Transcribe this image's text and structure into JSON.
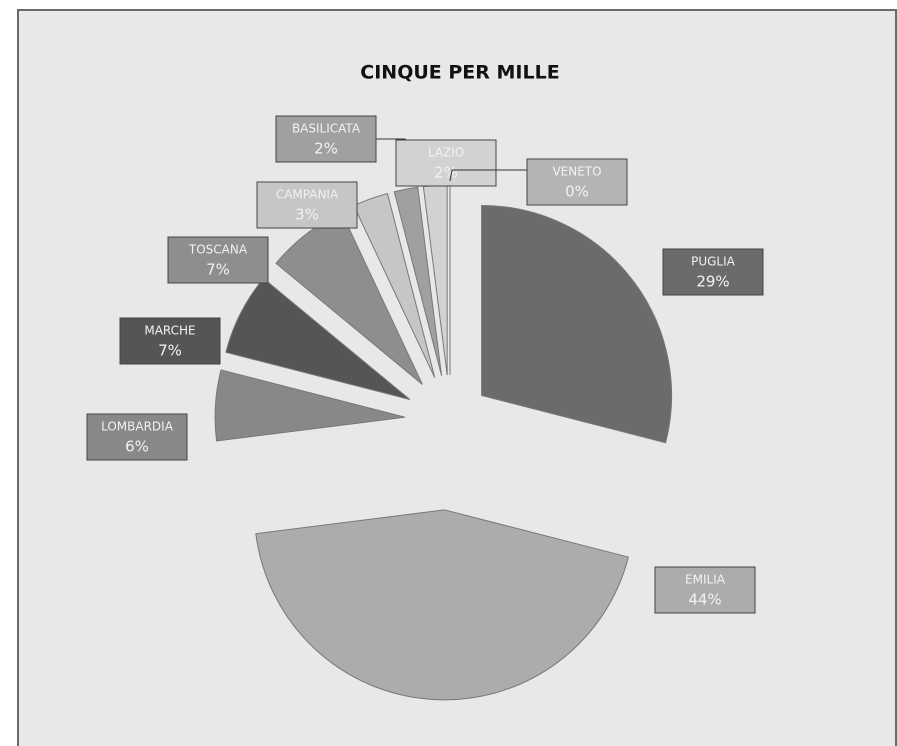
{
  "chart_data": {
    "type": "pie",
    "title": "CINQUE PER MILLE",
    "categories": [
      "PUGLIA",
      "EMILIA",
      "LOMBARDIA",
      "MARCHE",
      "TOSCANA",
      "CAMPANIA",
      "BASILICATA",
      "LAZIO",
      "VENETO"
    ],
    "values": [
      29,
      44,
      6,
      7,
      7,
      3,
      2,
      2,
      0
    ],
    "value_labels": [
      "29%",
      "44%",
      "6%",
      "7%",
      "7%",
      "3%",
      "2%",
      "2%",
      "0%"
    ],
    "colors": [
      "#6b6b6b",
      "#acacac",
      "#888888",
      "#555555",
      "#8e8e8e",
      "#c6c6c6",
      "#a0a0a0",
      "#d2d2d2",
      "#b4b4b4"
    ]
  }
}
